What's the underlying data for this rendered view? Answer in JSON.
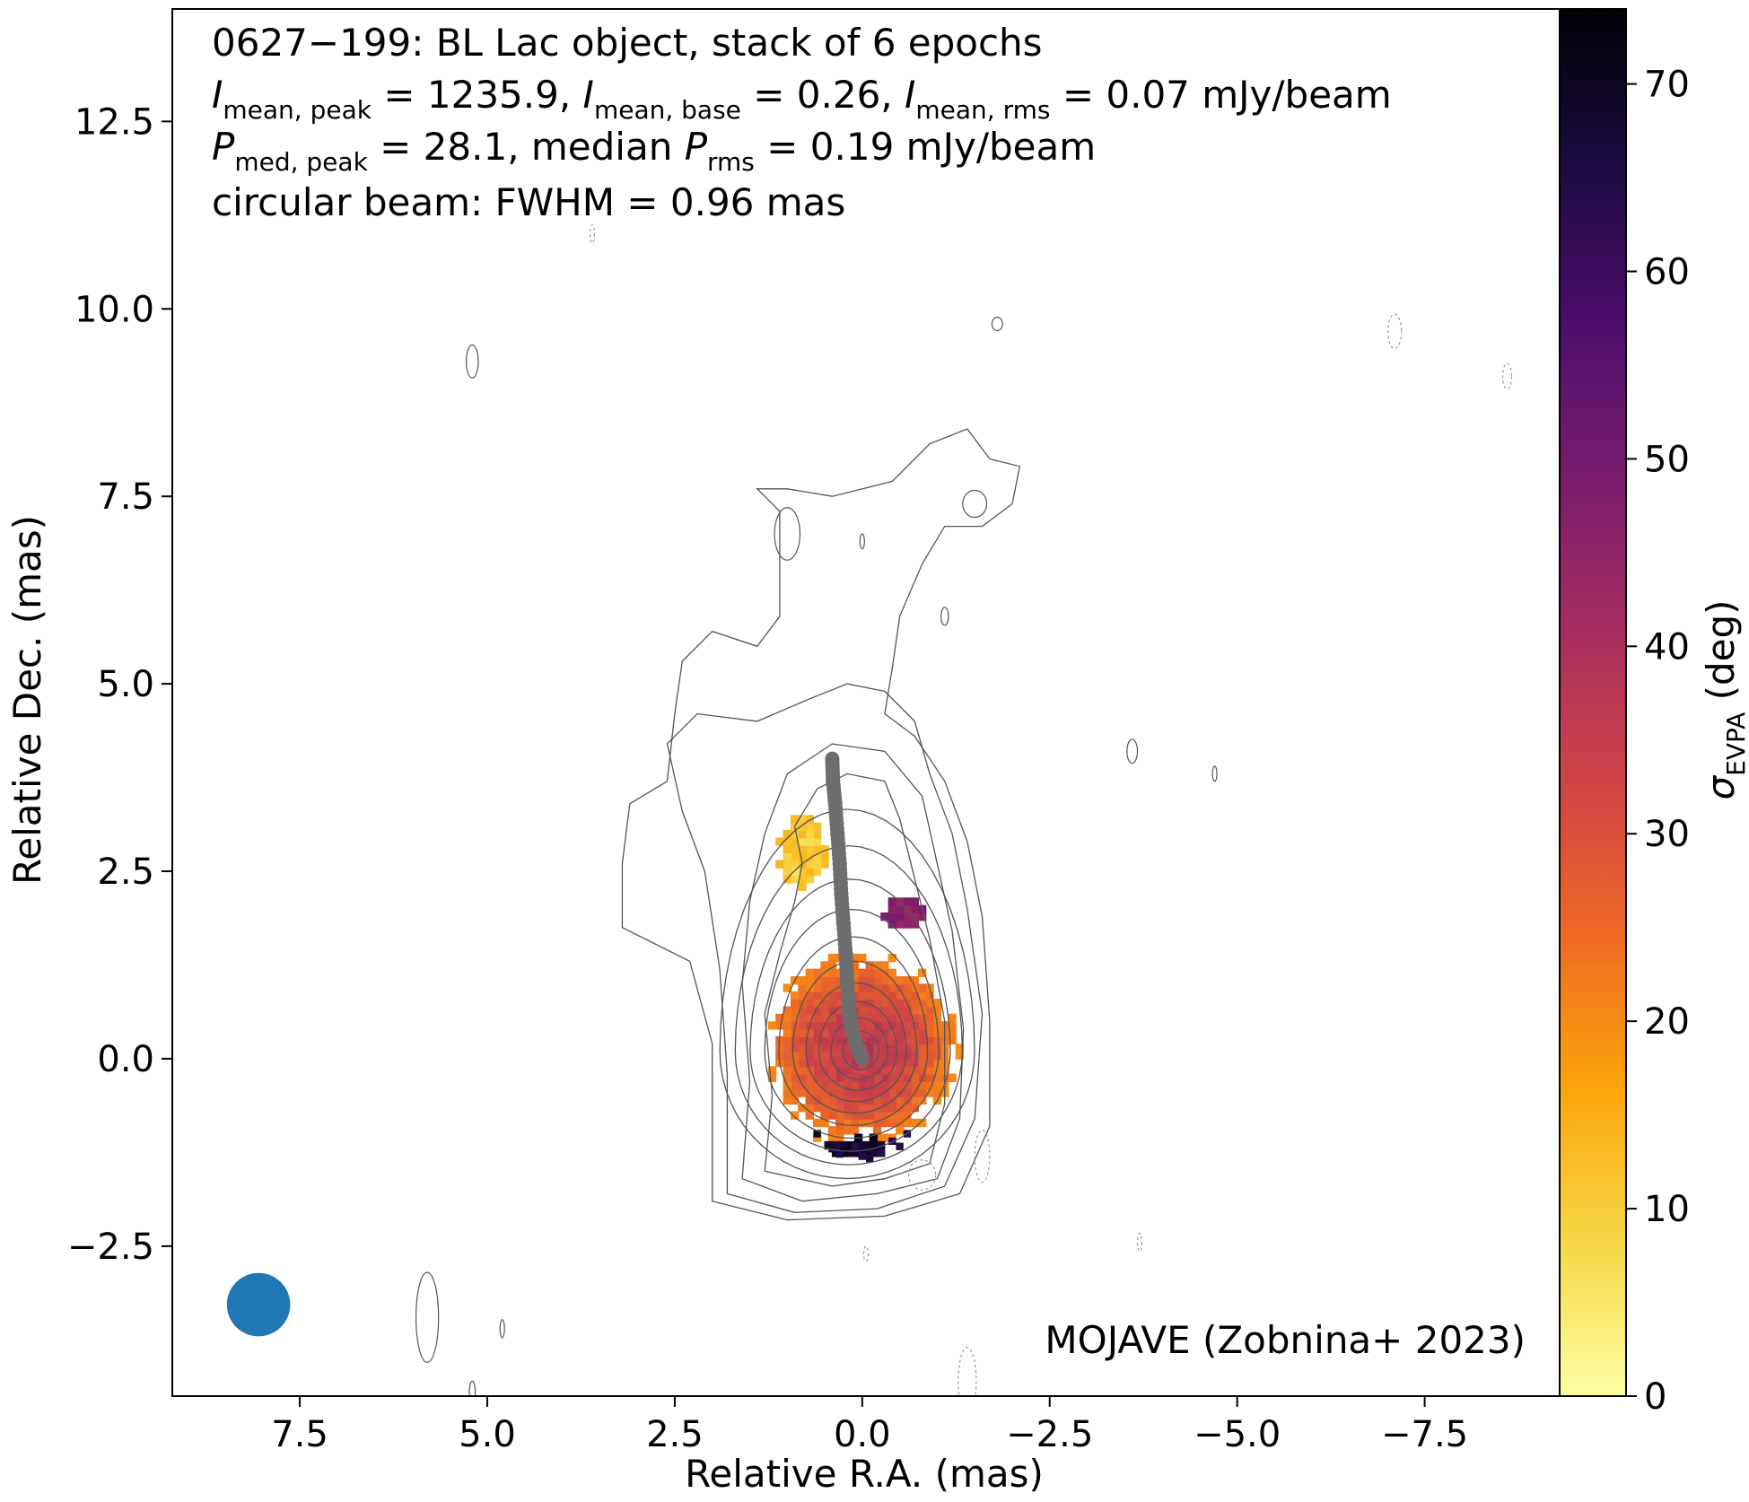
{
  "chart_data": {
    "type": "heatmap",
    "subtype": "radio-map-with-contours",
    "title_lines": [
      "0627−199: BL Lac object, stack of 6 epochs",
      {
        "parts": [
          [
            "I",
            "mean, peak",
            " = 1235.9, "
          ],
          [
            "I",
            "mean, base",
            " = 0.26, "
          ],
          [
            "I",
            "mean, rms",
            " = 0.07 mJy/beam"
          ]
        ]
      },
      {
        "parts": [
          [
            "P",
            "med, peak",
            " = 28.1, median "
          ],
          [
            "P",
            "rms",
            " = 0.19 mJy/beam"
          ]
        ]
      },
      "circular beam: FWHM = 0.96 mas"
    ],
    "source": "0627−199",
    "object_type": "BL Lac object",
    "epochs": 6,
    "I_mean_peak": 1235.9,
    "I_mean_base": 0.26,
    "I_mean_rms": 0.07,
    "P_med_peak": 28.1,
    "P_rms_median": 0.19,
    "flux_unit": "mJy/beam",
    "beam_fwhm_mas": 0.96,
    "credit": "MOJAVE (Zobnina+ 2023)",
    "xlabel": "Relative R.A. (mas)",
    "ylabel": "Relative Dec. (mas)",
    "xlim": [
      9.2,
      -9.3
    ],
    "ylim": [
      -4.5,
      14
    ],
    "xticks": [
      7.5,
      5.0,
      2.5,
      0.0,
      -2.5,
      -5.0,
      -7.5
    ],
    "xtick_labels": [
      "7.5",
      "5.0",
      "2.5",
      "0.0",
      "−2.5",
      "−5.0",
      "−7.5"
    ],
    "yticks": [
      -2.5,
      0.0,
      2.5,
      5.0,
      7.5,
      10.0,
      12.5
    ],
    "ytick_labels": [
      "−2.5",
      "0.0",
      "2.5",
      "5.0",
      "7.5",
      "10.0",
      "12.5"
    ],
    "grid": false,
    "colorbar": {
      "label": "σ",
      "label_sub": "EVPA",
      "label_unit": " (deg)",
      "range": [
        0,
        74
      ],
      "ticks": [
        0,
        10,
        20,
        30,
        40,
        50,
        60,
        70
      ],
      "colormap": "inferno_r",
      "stops": [
        "#fcffa4",
        "#f6d746",
        "#fca50a",
        "#ed6925",
        "#cf4446",
        "#a52c60",
        "#781c6d",
        "#4a0c6b",
        "#1b0c41",
        "#000004"
      ]
    },
    "beam_marker": {
      "x": 8.05,
      "y": -3.28,
      "radius_mas": 0.48,
      "color": "#1f77b4"
    },
    "ridge_line": {
      "color": "#6e6e6e",
      "points": [
        [
          0.0,
          0.0
        ],
        [
          0.05,
          0.1
        ],
        [
          0.1,
          0.25
        ],
        [
          0.15,
          0.45
        ],
        [
          0.18,
          0.7
        ],
        [
          0.2,
          1.0
        ],
        [
          0.22,
          1.4
        ],
        [
          0.25,
          1.8
        ],
        [
          0.28,
          2.2
        ],
        [
          0.3,
          2.6
        ],
        [
          0.33,
          3.0
        ],
        [
          0.36,
          3.4
        ],
        [
          0.39,
          3.7
        ],
        [
          0.4,
          4.0
        ]
      ]
    },
    "contour_levels_note": "logarithmic total-intensity contours",
    "polarization_regions": [
      {
        "name": "core",
        "cx": 0.05,
        "cy": 0.1,
        "r": 1.2,
        "sigma_center": 36,
        "sigma_edge": 20
      },
      {
        "name": "upper-yellow",
        "cx": 0.85,
        "cy": 2.7,
        "rx": 0.3,
        "ry": 0.45,
        "sigma": 10
      },
      {
        "name": "north-patch",
        "cx": -0.5,
        "cy": 1.9,
        "rx": 0.25,
        "ry": 0.25,
        "sigma": 46
      },
      {
        "name": "south-dark",
        "cx": 0.1,
        "cy": -1.25,
        "rx": 0.4,
        "ry": 0.15,
        "sigma": 68
      }
    ]
  }
}
